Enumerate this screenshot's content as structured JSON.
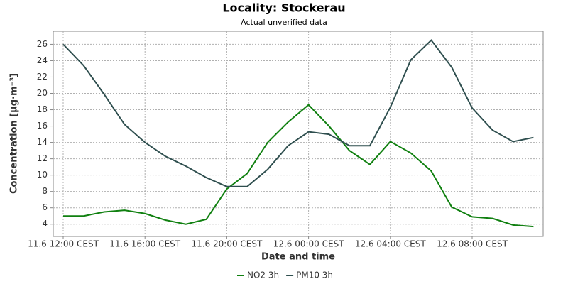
{
  "chart_data": {
    "type": "line",
    "title": "Locality: Stockerau",
    "subtitle": "Actual unverified data",
    "x_label": "Date and time",
    "y_label": "Concentration [µg·m⁻³]",
    "categories": [
      "11.6 12:00 CEST",
      null,
      null,
      null,
      "11.6 16:00 CEST",
      null,
      null,
      null,
      "11.6 20:00 CEST",
      null,
      null,
      null,
      "12.6 00:00 CEST",
      null,
      null,
      null,
      "12.6 04:00 CEST",
      null,
      null,
      null,
      "12.6 08:00 CEST",
      null,
      null,
      null
    ],
    "series": [
      {
        "name": "NO2 3h",
        "color": "#108010",
        "values": [
          5.0,
          5.0,
          5.5,
          5.7,
          5.3,
          4.5,
          4.0,
          4.6,
          8.3,
          10.2,
          14.0,
          16.5,
          18.6,
          16.0,
          13.0,
          11.3,
          14.1,
          12.7,
          10.5,
          6.1,
          4.9,
          4.7,
          3.9,
          3.7
        ]
      },
      {
        "name": "PM10 3h",
        "color": "#2f4f4f",
        "values": [
          26.0,
          23.4,
          19.9,
          16.2,
          14.0,
          12.3,
          11.1,
          9.7,
          8.6,
          8.6,
          10.7,
          13.6,
          15.3,
          15.0,
          13.6,
          13.6,
          18.3,
          24.1,
          26.5,
          23.2,
          18.2,
          15.5,
          14.1,
          14.6
        ]
      }
    ],
    "ylim": [
      2.5,
      27.6
    ],
    "yticks": [
      4,
      6,
      8,
      10,
      12,
      14,
      16,
      18,
      20,
      22,
      24,
      26
    ],
    "grid": true,
    "legend": "bottom"
  }
}
